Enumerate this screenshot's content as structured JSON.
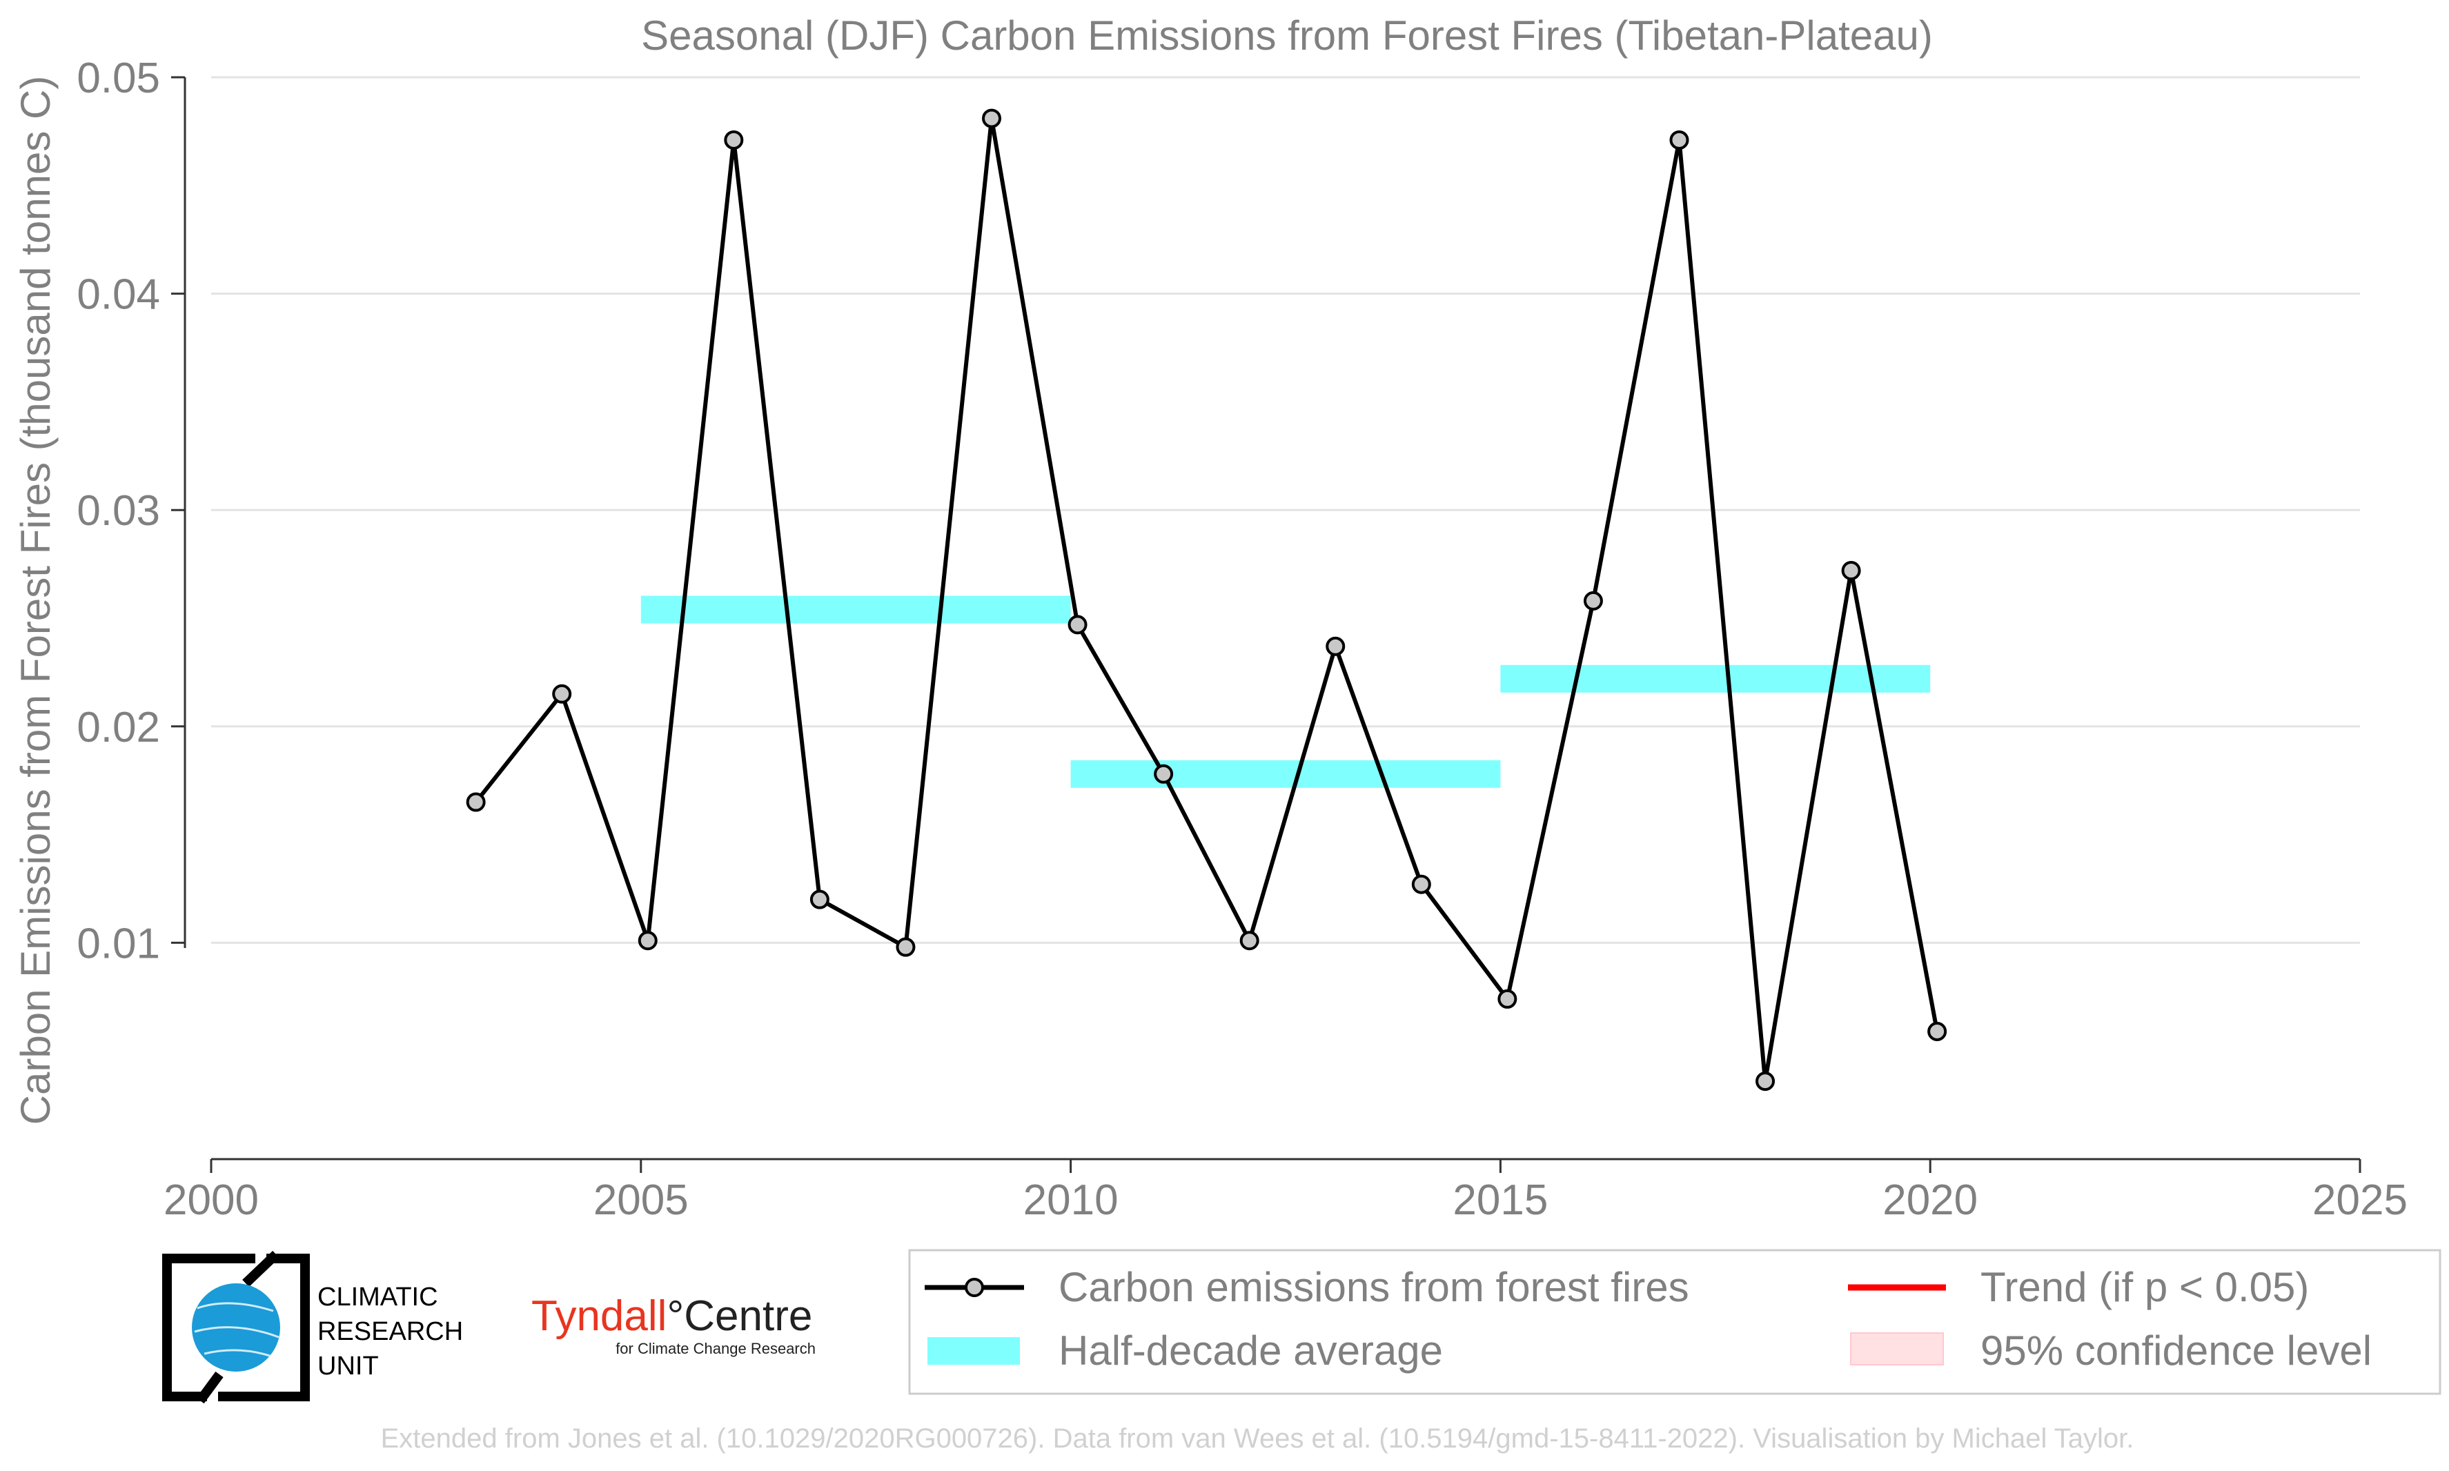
{
  "chart_data": {
    "type": "line",
    "title": "Seasonal (DJF) Carbon Emissions from Forest Fires (Tibetan-Plateau)",
    "xlabel": "",
    "ylabel": "Carbon Emissions from Forest Fires (thousand tonnes C)",
    "xlim": [
      2000,
      2025
    ],
    "ylim": [
      0,
      0.05
    ],
    "x_ticks": [
      "2000",
      "2005",
      "2010",
      "2015",
      "2020",
      "2025"
    ],
    "y_ticks": [
      "0.01",
      "0.02",
      "0.03",
      "0.04",
      "0.05"
    ],
    "grid": "horizontal",
    "legend_position": "bottom-right",
    "series": [
      {
        "name": "Carbon emissions from forest fires",
        "color": "#000000",
        "marker_fill": "#c8c8c8",
        "x": [
          2003,
          2004,
          2005,
          2006,
          2007,
          2008,
          2009,
          2010,
          2011,
          2012,
          2013,
          2014,
          2015,
          2016,
          2017,
          2018,
          2019,
          2020
        ],
        "y": [
          0.0165,
          0.0215,
          0.0101,
          0.0471,
          0.012,
          0.0098,
          0.0481,
          0.0247,
          0.0178,
          0.0101,
          0.0237,
          0.0127,
          0.0074,
          0.0258,
          0.0471,
          0.0036,
          0.0272,
          0.0059
        ]
      }
    ],
    "half_decade_averages": [
      {
        "x_start": 2005,
        "x_end": 2010,
        "value": 0.0254
      },
      {
        "x_start": 2010,
        "x_end": 2015,
        "value": 0.0178
      },
      {
        "x_start": 2015,
        "x_end": 2020,
        "value": 0.0222
      }
    ],
    "half_decade_color": "#80ffff",
    "trend_color": "#ff0000",
    "confidence_color": "#ffe0e3"
  },
  "legend": {
    "emissions_label": "Carbon emissions from forest fires",
    "halfdecade_label": "Half-decade average",
    "trend_label": "Trend (if p < 0.05)",
    "confidence_label": "95% confidence level"
  },
  "logos": {
    "cru_line1": "CLIMATIC",
    "cru_line2": "RESEARCH",
    "cru_line3": "UNIT",
    "tyndall_name_part1": "Tyndall",
    "tyndall_name_part2": "°Centre",
    "tyndall_sub": "for Climate Change Research",
    "cru_globe_color": "#1b9bd7",
    "tyndall_color": "#e8351f"
  },
  "footer": {
    "credit": "Extended from Jones et al. (10.1029/2020RG000726). Data from van Wees et al. (10.5194/gmd-15-8411-2022). Visualisation by Michael Taylor."
  }
}
